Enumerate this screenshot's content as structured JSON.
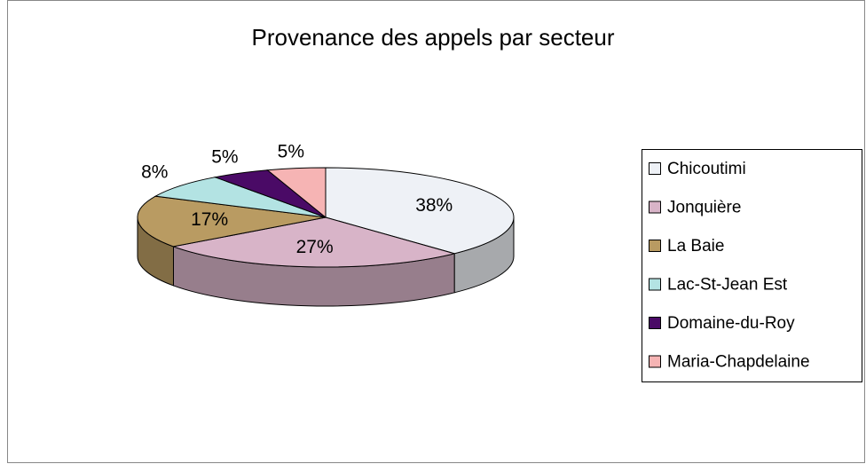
{
  "chart_data": {
    "type": "pie",
    "title": "Provenance des appels par secteur",
    "categories": [
      "Chicoutimi",
      "Jonquière",
      "La Baie",
      "Lac-St-Jean Est",
      "Domaine-du-Roy",
      "Maria-Chapdelaine"
    ],
    "values": [
      38,
      27,
      17,
      8,
      5,
      5
    ],
    "value_labels": [
      "38%",
      "27%",
      "17%",
      "8%",
      "5%",
      "5%"
    ],
    "colors": [
      "#eef1f6",
      "#d8b4c8",
      "#b99b62",
      "#b3e3e3",
      "#4a0a66",
      "#f6b4b4"
    ],
    "legend": "right"
  }
}
